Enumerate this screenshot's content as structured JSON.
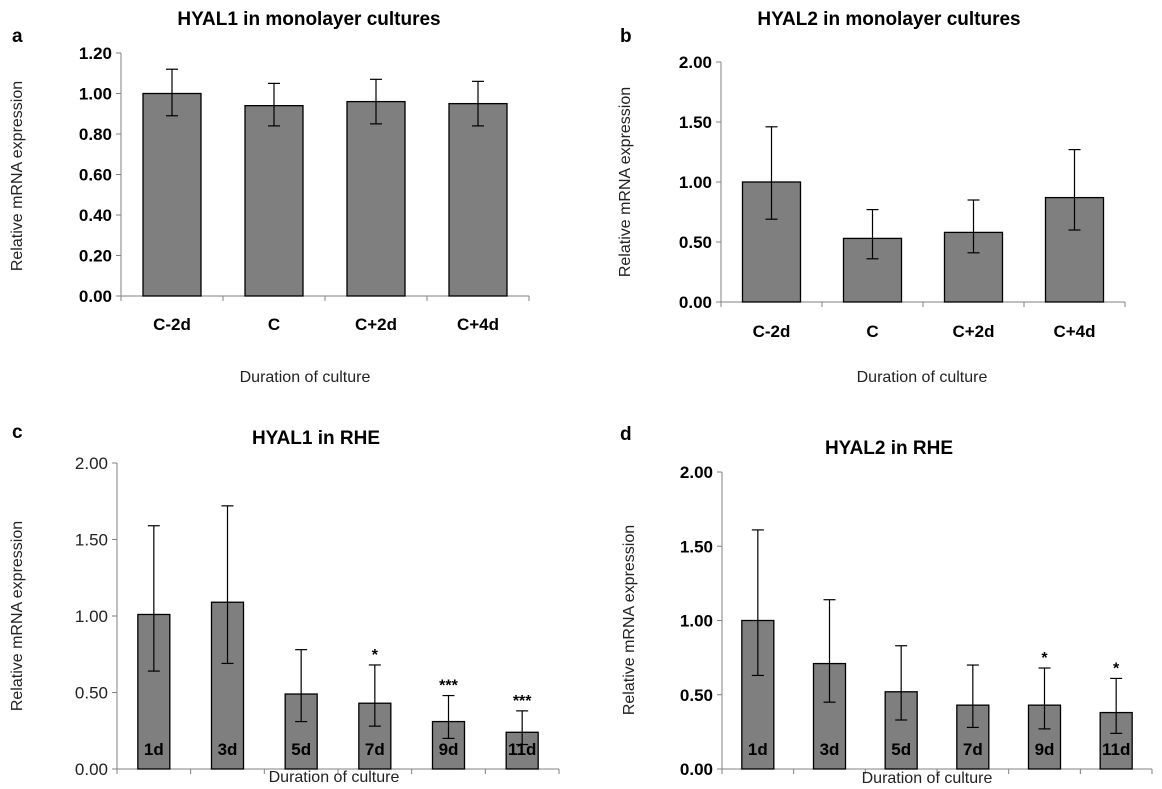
{
  "chart_data": [
    {
      "panel": "a",
      "type": "bar",
      "title": "HYAL1 in monolayer cultures",
      "xlabel": "Duration of culture",
      "ylabel": "Relative mRNA expression",
      "categories": [
        "C-2d",
        "C",
        "C+2d",
        "C+4d"
      ],
      "values": [
        1.0,
        0.94,
        0.96,
        0.95
      ],
      "error_low": [
        0.89,
        0.84,
        0.85,
        0.84
      ],
      "error_high": [
        1.12,
        1.05,
        1.07,
        1.06
      ],
      "significance": [
        "",
        "",
        "",
        ""
      ],
      "ylim": [
        0,
        1.2
      ],
      "yticks": [
        "0.00",
        "0.20",
        "0.40",
        "0.60",
        "0.80",
        "1.00",
        "1.20"
      ],
      "ytick_values": [
        0,
        0.2,
        0.4,
        0.6,
        0.8,
        1.0,
        1.2
      ],
      "tick_style": "bold",
      "grid": false,
      "bar_color": "#7f7f7f"
    },
    {
      "panel": "b",
      "type": "bar",
      "title": "HYAL2 in monolayer cultures",
      "xlabel": "Duration of culture",
      "ylabel": "Relative mRNA expression",
      "categories": [
        "C-2d",
        "C",
        "C+2d",
        "C+4d"
      ],
      "values": [
        1.0,
        0.53,
        0.58,
        0.87
      ],
      "error_low": [
        0.69,
        0.36,
        0.41,
        0.6
      ],
      "error_high": [
        1.46,
        0.77,
        0.85,
        1.27
      ],
      "significance": [
        "",
        "",
        "",
        ""
      ],
      "ylim": [
        0,
        2.0
      ],
      "yticks": [
        "0.00",
        "0.50",
        "1.00",
        "1.50",
        "2.00"
      ],
      "ytick_values": [
        0,
        0.5,
        1.0,
        1.5,
        2.0
      ],
      "tick_style": "bold",
      "grid": false,
      "bar_color": "#7f7f7f"
    },
    {
      "panel": "c",
      "type": "bar",
      "title": "HYAL1 in RHE",
      "xlabel": "Duration of culture",
      "ylabel": "Relative mRNA expression",
      "categories": [
        "1d",
        "3d",
        "5d",
        "7d",
        "9d",
        "11d"
      ],
      "values": [
        1.01,
        1.09,
        0.49,
        0.43,
        0.31,
        0.24
      ],
      "error_low": [
        0.64,
        0.69,
        0.31,
        0.28,
        0.2,
        0.16
      ],
      "error_high": [
        1.59,
        1.72,
        0.78,
        0.68,
        0.48,
        0.38
      ],
      "significance": [
        "",
        "",
        "",
        "*",
        "***",
        "***"
      ],
      "ylim": [
        0,
        2.0
      ],
      "yticks": [
        "0.00",
        "0.50",
        "1.00",
        "1.50",
        "2.00"
      ],
      "ytick_values": [
        0,
        0.5,
        1.0,
        1.5,
        2.0
      ],
      "tick_style": "normal",
      "grid": false,
      "bar_color": "#7f7f7f"
    },
    {
      "panel": "d",
      "type": "bar",
      "title": "HYAL2 in RHE",
      "xlabel": "Duration of culture",
      "ylabel": "Relative mRNA expression",
      "categories": [
        "1d",
        "3d",
        "5d",
        "7d",
        "9d",
        "11d"
      ],
      "values": [
        1.0,
        0.71,
        0.52,
        0.43,
        0.43,
        0.38
      ],
      "error_low": [
        0.63,
        0.45,
        0.33,
        0.28,
        0.27,
        0.24
      ],
      "error_high": [
        1.61,
        1.14,
        0.83,
        0.7,
        0.68,
        0.61
      ],
      "significance": [
        "",
        "",
        "",
        "",
        "*",
        "*"
      ],
      "ylim": [
        0,
        2.0
      ],
      "yticks": [
        "0.00",
        "0.50",
        "1.00",
        "1.50",
        "2.00"
      ],
      "ytick_values": [
        0,
        0.5,
        1.0,
        1.5,
        2.0
      ],
      "tick_style": "bold",
      "grid": false,
      "bar_color": "#7f7f7f"
    }
  ]
}
